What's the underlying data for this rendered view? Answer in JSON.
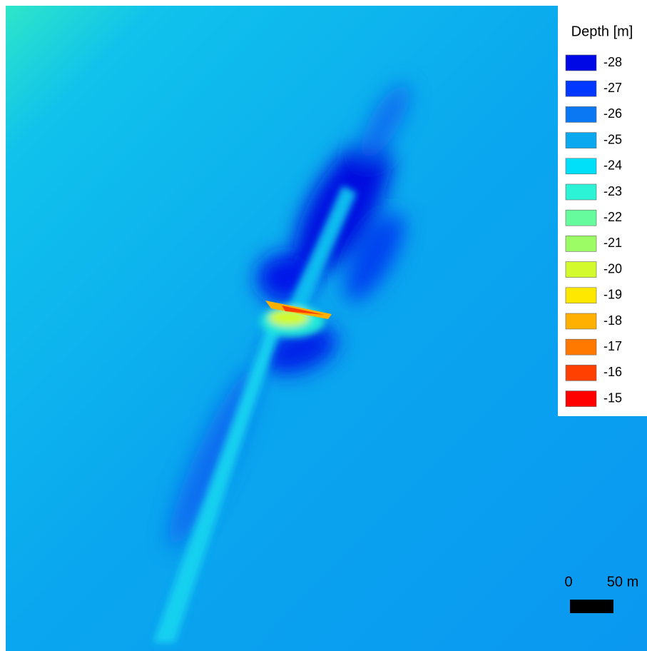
{
  "legend": {
    "title": "Depth [m]",
    "items": [
      {
        "label": "-28",
        "color": "#0008e6"
      },
      {
        "label": "-27",
        "color": "#0038ff"
      },
      {
        "label": "-26",
        "color": "#0a78f2"
      },
      {
        "label": "-25",
        "color": "#0aa8ee"
      },
      {
        "label": "-24",
        "color": "#00e0f8"
      },
      {
        "label": "-23",
        "color": "#2cf2d6"
      },
      {
        "label": "-22",
        "color": "#66fb9c"
      },
      {
        "label": "-21",
        "color": "#9cfc66"
      },
      {
        "label": "-20",
        "color": "#d2fa2c"
      },
      {
        "label": "-19",
        "color": "#ffe800"
      },
      {
        "label": "-18",
        "color": "#ffb000"
      },
      {
        "label": "-17",
        "color": "#ff7800"
      },
      {
        "label": "-16",
        "color": "#ff4000"
      },
      {
        "label": "-15",
        "color": "#ff0000"
      }
    ]
  },
  "scale_bar": {
    "labels": [
      "0",
      "50 m"
    ]
  }
}
